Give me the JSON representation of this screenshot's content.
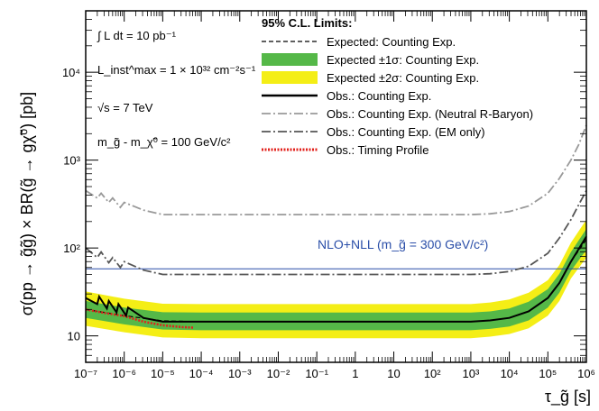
{
  "chart_data": {
    "type": "line",
    "title": "",
    "xlabel": "τ_g̃ [s]",
    "ylabel": "σ(pp → g̃g̃) × BR(g̃ → gχ̃⁰) [pb]",
    "xscale": "log",
    "yscale": "log",
    "xlim": [
      1e-07,
      1000000.0
    ],
    "ylim": [
      5,
      50000
    ],
    "x_ticks": [
      "10⁻⁷",
      "10⁻⁶",
      "10⁻⁵",
      "10⁻⁴",
      "10⁻³",
      "10⁻²",
      "10⁻¹",
      "1",
      "10",
      "10²",
      "10³",
      "10⁴",
      "10⁵",
      "10⁶"
    ],
    "y_ticks": [
      "10",
      "10²",
      "10³",
      "10⁴"
    ],
    "info": {
      "lumi": "∫ L dt = 10 pb⁻¹",
      "linst": "L_inst^max = 1 × 10³² cm⁻²s⁻¹",
      "sqrts": "√s = 7 TeV",
      "massdiff": "m_g̃ - m_χ̃⁰ = 100 GeV/c²"
    },
    "legend_title": "95% C.L. Limits:",
    "legend": [
      "Expected: Counting Exp.",
      "Expected ±1σ: Counting Exp.",
      "Expected ±2σ: Counting Exp.",
      "Obs.: Counting Exp.",
      "Obs.: Counting Exp. (Neutral R-Baryon)",
      "Obs.: Counting Exp. (EM only)",
      "Obs.: Timing Profile"
    ],
    "nlo_label": "NLO+NLL (m_g̃ = 300 GeV/c²)",
    "nlo_value": 58,
    "colors": {
      "band1": "#55b848",
      "band2": "#f4ee16",
      "nlo": "#2a4ea8",
      "timing": "#e2221c",
      "neutral": "#999999",
      "em": "#555555"
    },
    "series": [
      {
        "name": "Expected: Counting Exp.",
        "logx": [
          -7,
          -6,
          -5,
          -4,
          3,
          3.5,
          4,
          4.5,
          5,
          5.3,
          5.6,
          6
        ],
        "y": [
          20,
          17,
          14.8,
          14.5,
          14.5,
          15,
          16,
          19,
          27,
          40,
          70,
          125
        ]
      },
      {
        "name": "Expected ±1σ: Counting Exp.",
        "logx": [
          -7,
          -6,
          -5,
          -4,
          3,
          3.5,
          4,
          4.5,
          5,
          5.3,
          5.6,
          6
        ],
        "low": [
          16,
          13.5,
          11.8,
          11.6,
          11.6,
          12,
          12.8,
          15,
          21,
          31,
          55,
          95
        ],
        "high": [
          25,
          21,
          18.6,
          18.4,
          18.4,
          19,
          20.5,
          24.5,
          34,
          51,
          90,
          165
        ]
      },
      {
        "name": "Expected ±2σ: Counting Exp.",
        "logx": [
          -7,
          -6,
          -5,
          -4,
          3,
          3.5,
          4,
          4.5,
          5,
          5.3,
          5.6,
          6
        ],
        "low": [
          13,
          11,
          9.6,
          9.4,
          9.4,
          9.8,
          10.5,
          12.2,
          17,
          25,
          45,
          78
        ],
        "high": [
          32,
          26.5,
          23.2,
          23,
          23,
          24,
          26,
          31,
          43,
          64,
          115,
          210
        ]
      },
      {
        "name": "Obs.: Counting Exp.",
        "logx": [
          -7,
          -6.7,
          -6.65,
          -6.45,
          -6.4,
          -6.2,
          -6.15,
          -5.95,
          -5.9,
          -5.5,
          -5,
          -4,
          3,
          3.5,
          4,
          4.5,
          5,
          5.3,
          5.6,
          6
        ],
        "y": [
          27,
          23,
          28,
          20.5,
          25,
          18.5,
          23,
          17,
          21,
          16,
          14.5,
          14.5,
          14.5,
          15,
          16,
          19,
          27,
          40,
          70,
          135
        ]
      },
      {
        "name": "Obs.: Counting Exp. (Neutral R-Baryon)",
        "logx": [
          -7,
          -6.7,
          -6.6,
          -6.4,
          -6.3,
          -6.1,
          -6,
          -5.5,
          -5,
          -4,
          3,
          3.5,
          4,
          4.5,
          5,
          5.3,
          5.6,
          5.8,
          6
        ],
        "y": [
          450,
          370,
          420,
          330,
          370,
          290,
          330,
          270,
          240,
          240,
          240,
          245,
          260,
          300,
          420,
          620,
          1000,
          1500,
          2500
        ]
      },
      {
        "name": "Obs.: Counting Exp. (EM only)",
        "logx": [
          -7,
          -6.7,
          -6.6,
          -6.4,
          -6.3,
          -6.1,
          -6,
          -5.5,
          -5,
          -4,
          3,
          3.5,
          4,
          4.5,
          5,
          5.3,
          5.6,
          5.8,
          6
        ],
        "y": [
          100,
          78,
          90,
          68,
          78,
          60,
          70,
          56,
          50,
          50,
          50,
          51,
          54,
          62,
          87,
          130,
          210,
          310,
          450
        ]
      },
      {
        "name": "Obs.: Timing Profile",
        "logx": [
          -7,
          -6.5,
          -6,
          -5.5,
          -5,
          -4.5,
          -4.2
        ],
        "y": [
          20,
          18.2,
          16.8,
          14.5,
          13.2,
          12.6,
          12.4
        ]
      }
    ]
  }
}
